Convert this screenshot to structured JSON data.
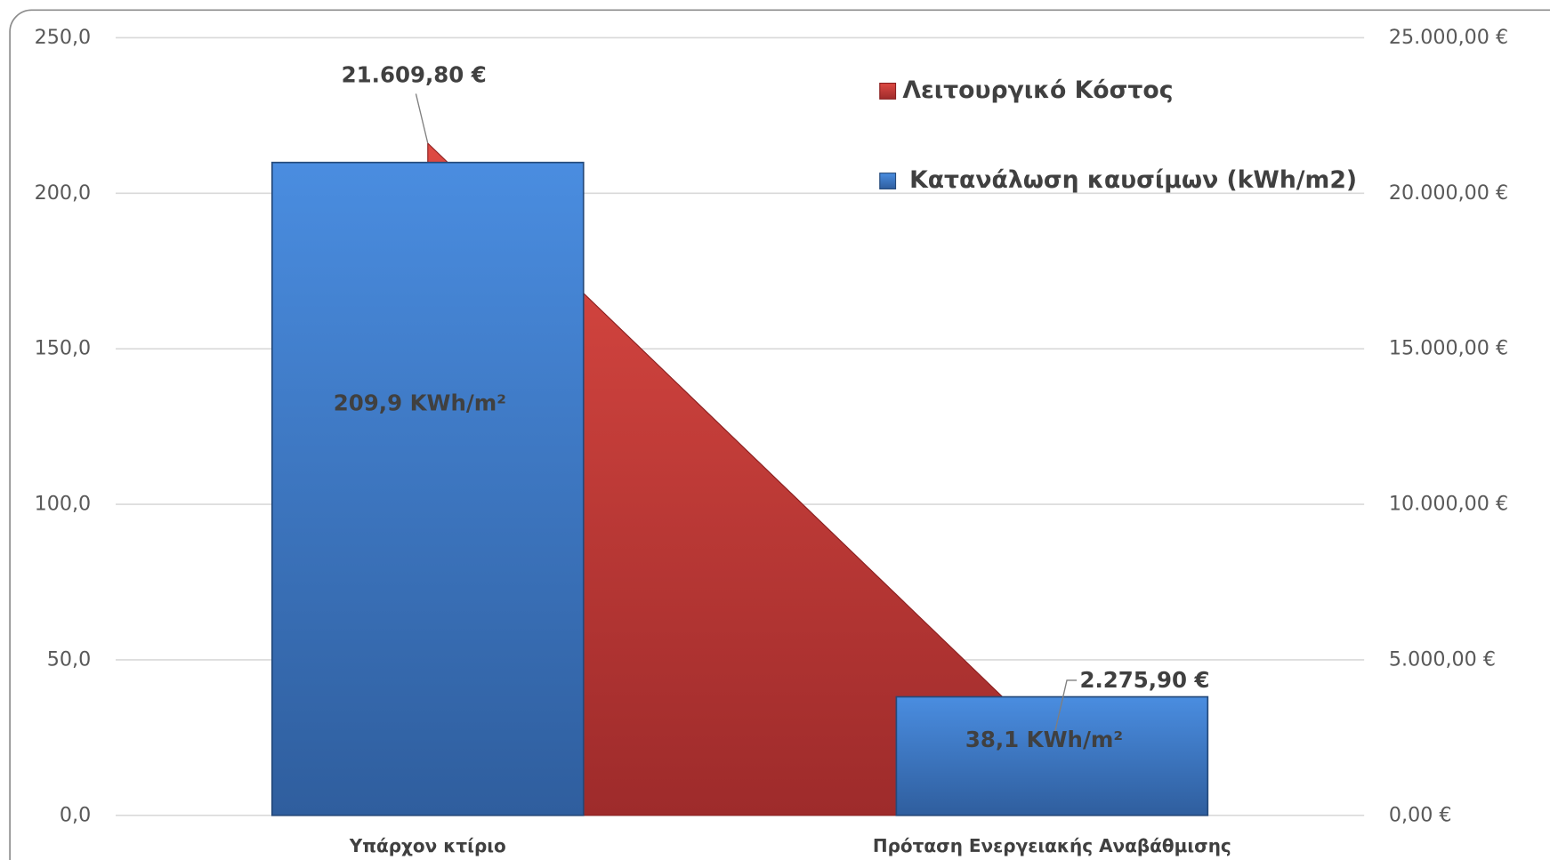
{
  "chart_data": {
    "type": "bar",
    "categories": [
      "Υπάρχον κτίριο",
      "Πρόταση Ενεργειακής Αναβάθμισης"
    ],
    "series": [
      {
        "name": "Λειτουργικό Κόστος",
        "type": "area",
        "axis": "y2",
        "color": "#c0392b",
        "values": [
          21609.8,
          2275.9
        ],
        "value_labels": [
          "21.609,80 €",
          "2.275,90 €"
        ]
      },
      {
        "name": "Κατανάλωση καυσίμων (kWh/m2)",
        "type": "bar",
        "color": "#3b78c8",
        "values": [
          209.9,
          38.1
        ],
        "value_labels": [
          "209,9 KWh/m²",
          "38,1 KWh/m²"
        ]
      }
    ],
    "ylim": [
      0,
      250
    ],
    "yticks": [
      {
        "value": 0,
        "label": "0,0"
      },
      {
        "value": 50,
        "label": "50,0"
      },
      {
        "value": 100,
        "label": "100,0"
      },
      {
        "value": 150,
        "label": "150,0"
      },
      {
        "value": 200,
        "label": "200,0"
      },
      {
        "value": 250,
        "label": "250,0"
      }
    ],
    "y2lim": [
      0,
      25000
    ],
    "y2ticks": [
      {
        "value": 0,
        "label": "0,00 €"
      },
      {
        "value": 5000,
        "label": "5.000,00 €"
      },
      {
        "value": 10000,
        "label": "10.000,00 €"
      },
      {
        "value": 15000,
        "label": "15.000,00 €"
      },
      {
        "value": 20000,
        "label": "20.000,00 €"
      },
      {
        "value": 25000,
        "label": "25.000,00 €"
      }
    ],
    "grid": true,
    "legend": "top-right"
  }
}
